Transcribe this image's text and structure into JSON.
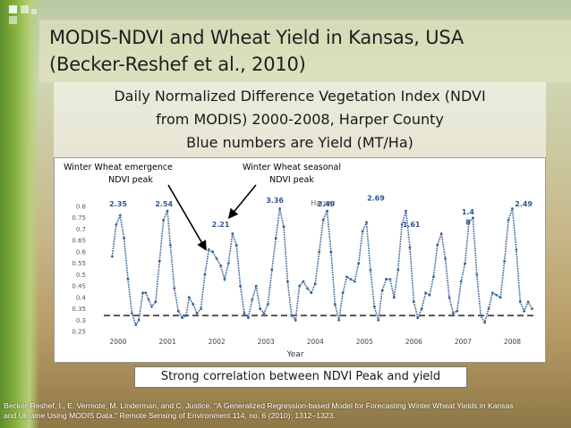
{
  "slide": {
    "title_line1": "MODIS-NDVI and Wheat Yield in Kansas, USA",
    "title_line2": "(Becker-Reshef et al., 2010)",
    "subtitle_line1": "Daily Normalized Difference Vegetation Index (NDVI",
    "subtitle_line2": "from MODIS) 2000-2008, Harper County",
    "subtitle_line3": "Blue numbers are Yield (MT/Ha)",
    "footer": "Strong correlation between NDVI Peak and yield",
    "citation_line1": "Becker-Reshef, I., E. Vermote, M. Linderman, and C. Justice. \"A Generalized Regression-based Model for Forecasting Winter Wheat Yields in Kansas",
    "citation_line2": "and Ukraine Using MODIS Data.\" Remote Sensing of Environment 114, no. 6 (2010): 1312–1323."
  },
  "colors": {
    "series": "#3a6496",
    "yield_label": "#2f5597",
    "baseline": "#555555",
    "arrow": "#000000"
  },
  "chart_data": {
    "type": "line",
    "title": "Harper",
    "xlabel": "Year",
    "ylabel": "",
    "x_tick_labels": [
      "2000",
      "2001",
      "2002",
      "2003",
      "2004",
      "2005",
      "2006",
      "2007",
      "2008"
    ],
    "y_tick_labels": [
      "0.8",
      "0.75",
      "0.7",
      "0.65",
      "0.6",
      "0.55",
      "0.5",
      "0.45",
      "0.4",
      "0.35",
      "0.3",
      "0.25"
    ],
    "xlim": [
      1999.6,
      2008.5
    ],
    "ylim": [
      0.25,
      0.8
    ],
    "baseline_y": 0.32,
    "series": [
      {
        "name": "Daily NDVI",
        "x": [
          1999.88,
          1999.96,
          2000.04,
          2000.12,
          2000.2,
          2000.28,
          2000.36,
          2000.42,
          2000.5,
          2000.56,
          2000.62,
          2000.68,
          2000.76,
          2000.84,
          2000.92,
          2001.0,
          2001.06,
          2001.14,
          2001.22,
          2001.3,
          2001.38,
          2001.44,
          2001.52,
          2001.6,
          2001.68,
          2001.76,
          2001.84,
          2001.92,
          2002.0,
          2002.08,
          2002.16,
          2002.24,
          2002.32,
          2002.4,
          2002.48,
          2002.56,
          2002.64,
          2002.72,
          2002.8,
          2002.88,
          2002.96,
          2003.04,
          2003.12,
          2003.2,
          2003.28,
          2003.36,
          2003.44,
          2003.52,
          2003.6,
          2003.68,
          2003.76,
          2003.84,
          2003.92,
          2004.0,
          2004.08,
          2004.16,
          2004.24,
          2004.32,
          2004.4,
          2004.48,
          2004.56,
          2004.64,
          2004.72,
          2004.8,
          2004.88,
          2004.96,
          2005.04,
          2005.12,
          2005.2,
          2005.28,
          2005.36,
          2005.44,
          2005.52,
          2005.6,
          2005.68,
          2005.76,
          2005.84,
          2005.92,
          2006.0,
          2006.08,
          2006.16,
          2006.24,
          2006.32,
          2006.4,
          2006.48,
          2006.56,
          2006.64,
          2006.72,
          2006.8,
          2006.88,
          2006.96,
          2007.04,
          2007.12,
          2007.2,
          2007.28,
          2007.36,
          2007.44,
          2007.52,
          2007.6,
          2007.68,
          2007.76,
          2007.84,
          2007.92,
          2008.0,
          2008.08,
          2008.16,
          2008.24,
          2008.32,
          2008.4
        ],
        "y": [
          0.58,
          0.72,
          0.76,
          0.66,
          0.48,
          0.33,
          0.28,
          0.3,
          0.42,
          0.42,
          0.39,
          0.36,
          0.38,
          0.56,
          0.74,
          0.78,
          0.63,
          0.44,
          0.34,
          0.31,
          0.32,
          0.4,
          0.37,
          0.33,
          0.35,
          0.5,
          0.61,
          0.6,
          0.57,
          0.54,
          0.48,
          0.55,
          0.68,
          0.63,
          0.45,
          0.33,
          0.31,
          0.39,
          0.45,
          0.35,
          0.33,
          0.37,
          0.52,
          0.66,
          0.79,
          0.71,
          0.47,
          0.32,
          0.3,
          0.45,
          0.47,
          0.44,
          0.42,
          0.46,
          0.6,
          0.74,
          0.78,
          0.6,
          0.37,
          0.3,
          0.42,
          0.49,
          0.48,
          0.47,
          0.55,
          0.69,
          0.73,
          0.52,
          0.36,
          0.3,
          0.43,
          0.48,
          0.48,
          0.4,
          0.52,
          0.72,
          0.78,
          0.62,
          0.38,
          0.31,
          0.35,
          0.42,
          0.41,
          0.49,
          0.63,
          0.68,
          0.57,
          0.4,
          0.33,
          0.34,
          0.47,
          0.55,
          0.73,
          0.75,
          0.5,
          0.32,
          0.29,
          0.35,
          0.42,
          0.41,
          0.4,
          0.56,
          0.74,
          0.79,
          0.61,
          0.38,
          0.34,
          0.38,
          0.35
        ]
      }
    ],
    "yield_labels": [
      {
        "text": "2.35",
        "x": 2000.0,
        "y": 0.8
      },
      {
        "text": "2.54",
        "x": 2000.93,
        "y": 0.8
      },
      {
        "text": "2.21",
        "x": 2002.08,
        "y": 0.71
      },
      {
        "text": "3.36",
        "x": 2003.18,
        "y": 0.815
      },
      {
        "text": "2.49",
        "x": 2004.22,
        "y": 0.8
      },
      {
        "text": "2.69",
        "x": 2005.23,
        "y": 0.825
      },
      {
        "text": "1.61",
        "x": 2005.95,
        "y": 0.71
      },
      {
        "text": "1.4",
        "x": 2007.1,
        "y": 0.765
      },
      {
        "text": "8",
        "x": 2007.1,
        "y": 0.72
      },
      {
        "text": "2.49",
        "x": 2008.23,
        "y": 0.8
      }
    ],
    "annotations": [
      {
        "text_line1": "Winter Wheat emergence",
        "text_line2": "NDVI peak",
        "target_x": 2001.78,
        "target_y": 0.61
      },
      {
        "text_line1": "Winter Wheat seasonal",
        "text_line2": "NDVI peak",
        "target_x": 2002.25,
        "target_y": 0.75
      }
    ]
  }
}
